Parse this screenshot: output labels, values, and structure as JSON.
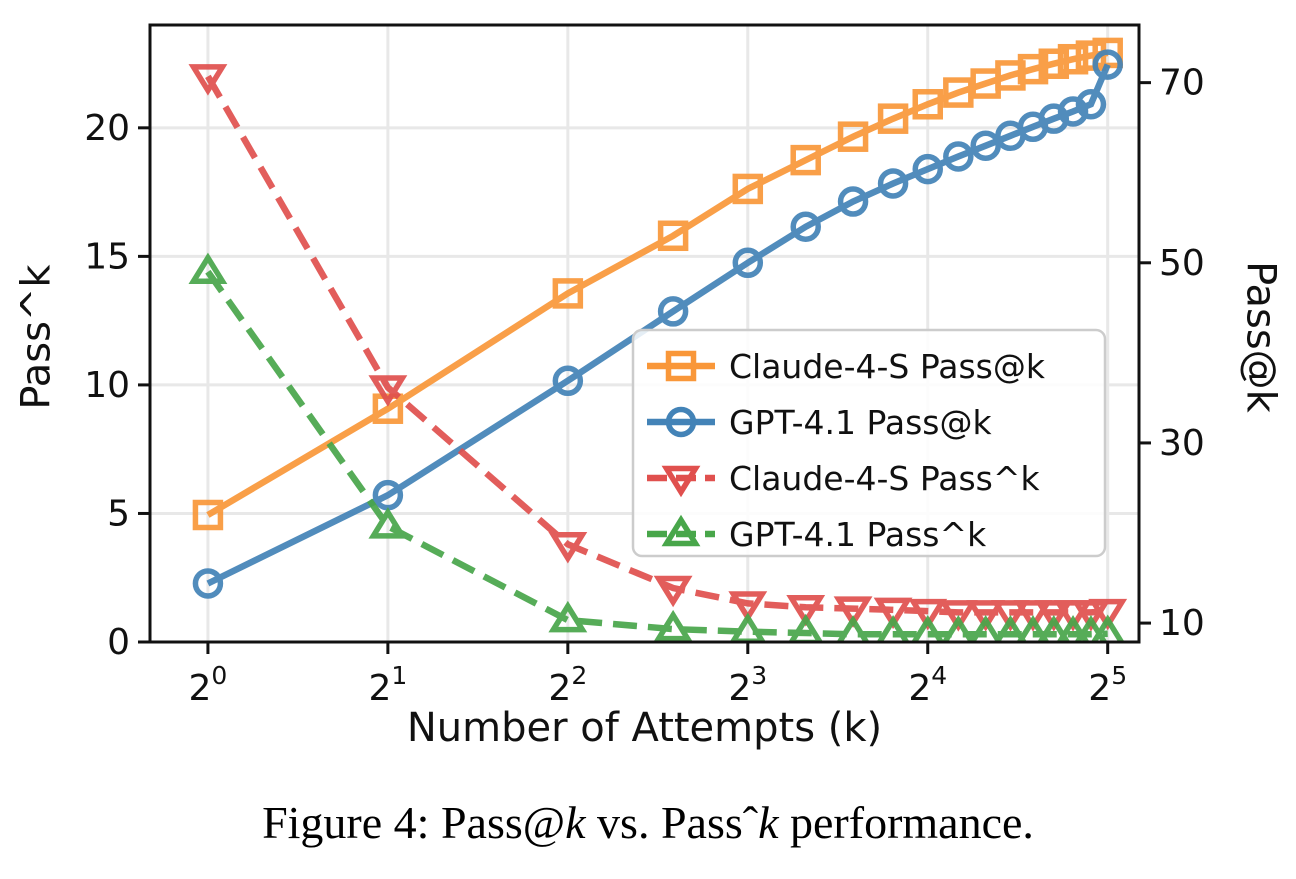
{
  "figure": {
    "caption_parts": [
      {
        "text": "Figure 4: ",
        "italic": false
      },
      {
        "text": "Pass@",
        "italic": false
      },
      {
        "text": "k",
        "italic": true
      },
      {
        "text": " vs. ",
        "italic": false
      },
      {
        "text": "Pass",
        "italic": false
      },
      {
        "text": "ˆ",
        "italic": false
      },
      {
        "text": "k",
        "italic": true
      },
      {
        "text": " performance.",
        "italic": false
      }
    ]
  },
  "chart_data": {
    "type": "line",
    "title": "",
    "xlabel": "Number of Attempts (k)",
    "ylabel_left": "Pass^k",
    "ylabel_right": "Pass@k",
    "x_scale": "log2",
    "grid": true,
    "grid_color": "#e8e8e8",
    "axis_color": "#111111",
    "legend_position": "center-right",
    "xlim": [
      0.8,
      36.1
    ],
    "ylim_left": [
      0,
      24
    ],
    "ylim_right": [
      7.9,
      76.4
    ],
    "x_ticks": [
      {
        "value": 1,
        "base": "2",
        "exp": "0"
      },
      {
        "value": 2,
        "base": "2",
        "exp": "1"
      },
      {
        "value": 4,
        "base": "2",
        "exp": "2"
      },
      {
        "value": 8,
        "base": "2",
        "exp": "3"
      },
      {
        "value": 16,
        "base": "2",
        "exp": "4"
      },
      {
        "value": 32,
        "base": "2",
        "exp": "5"
      }
    ],
    "yticks_left": [
      {
        "value": 0,
        "label": "0"
      },
      {
        "value": 5,
        "label": "5"
      },
      {
        "value": 10,
        "label": "10"
      },
      {
        "value": 15,
        "label": "15"
      },
      {
        "value": 20,
        "label": "20"
      }
    ],
    "yticks_right": [
      {
        "value": 10,
        "label": "10"
      },
      {
        "value": 30,
        "label": "30"
      },
      {
        "value": 50,
        "label": "50"
      },
      {
        "value": 70,
        "label": "70"
      }
    ],
    "x": [
      1,
      2,
      4,
      6,
      8,
      10,
      12,
      14,
      16,
      18,
      20,
      22,
      24,
      26,
      28,
      30,
      32
    ],
    "series": [
      {
        "name": "Claude-4-S Pass@k",
        "axis": "right",
        "color": "#f99739",
        "marker": "square",
        "line": "solid",
        "values": [
          22.0,
          33.8,
          46.6,
          53.0,
          58.2,
          61.4,
          64.0,
          66.0,
          67.6,
          68.9,
          69.9,
          70.8,
          71.5,
          72.1,
          72.6,
          73.0,
          73.3
        ]
      },
      {
        "name": "GPT-4.1 Pass@k",
        "axis": "right",
        "color": "#4383b7",
        "marker": "circle",
        "line": "solid",
        "values": [
          14.4,
          24.2,
          36.9,
          44.6,
          50.0,
          54.0,
          56.8,
          58.8,
          60.4,
          61.8,
          63.0,
          64.1,
          65.1,
          66.0,
          66.8,
          67.6,
          72.0
        ]
      },
      {
        "name": "Claude-4-S Pass^k",
        "axis": "left",
        "color": "#e0504e",
        "marker": "triangle-down",
        "line": "dashed",
        "values": [
          22.0,
          9.9,
          3.8,
          2.1,
          1.5,
          1.35,
          1.3,
          1.25,
          1.2,
          1.15,
          1.15,
          1.15,
          1.15,
          1.15,
          1.15,
          1.15,
          1.2
        ]
      },
      {
        "name": "GPT-4.1 Pass^k",
        "axis": "left",
        "color": "#48a64a",
        "marker": "triangle-up",
        "line": "dashed",
        "values": [
          14.4,
          4.5,
          0.85,
          0.5,
          0.4,
          0.35,
          0.3,
          0.3,
          0.3,
          0.3,
          0.3,
          0.3,
          0.3,
          0.3,
          0.3,
          0.3,
          0.32
        ]
      }
    ]
  }
}
